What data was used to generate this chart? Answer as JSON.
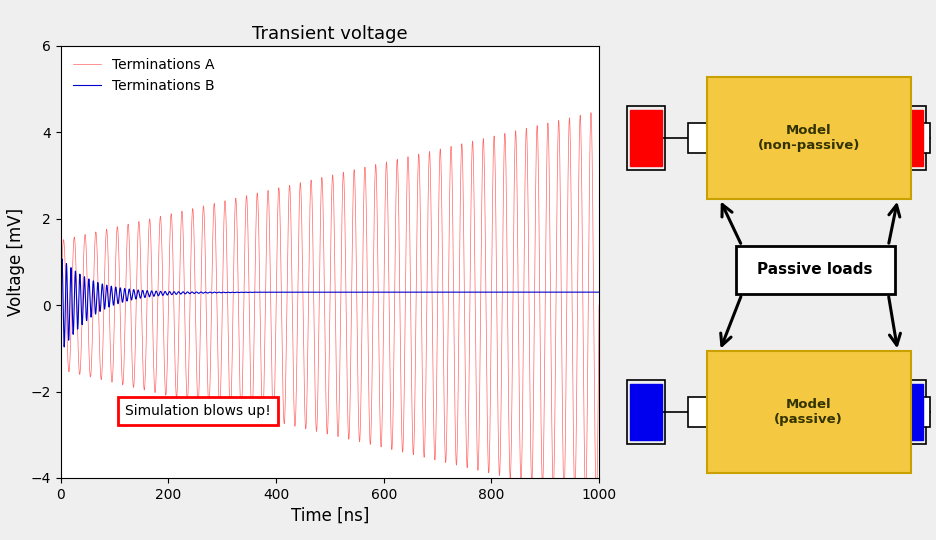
{
  "title": "Transient voltage",
  "xlabel": "Time [ns]",
  "ylabel": "Voltage [mV]",
  "xlim": [
    0,
    1000
  ],
  "ylim": [
    -4,
    6
  ],
  "yticks": [
    -4,
    -2,
    0,
    2,
    4,
    6
  ],
  "xticks": [
    0,
    200,
    400,
    600,
    800,
    1000
  ],
  "line_A_color": "#FF6666",
  "line_B_color": "#0000CC",
  "annotation_text": "Simulation blows up!",
  "annotation_box_color": "#FF0000",
  "legend_A": "Terminations A",
  "legend_B": "Terminations B",
  "model_color": "#F5C842",
  "model_edge_color": "#C8A000",
  "passive_loads_text": "Passive loads",
  "model_np_text": "Model\n(non-passive)",
  "model_p_text": "Model\n(passive)",
  "red_box_color": "#FF0000",
  "blue_box_color": "#0000EE",
  "background_color": "#FFFFFF",
  "fig_bg": "#EFEFEF"
}
